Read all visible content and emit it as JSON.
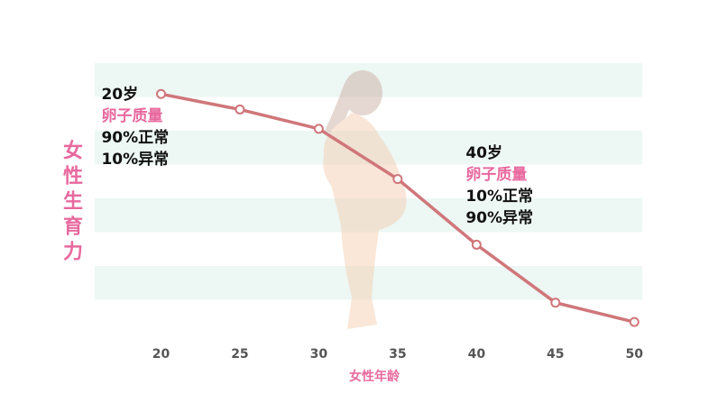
{
  "chart_data": {
    "type": "line",
    "x": [
      20,
      25,
      30,
      35,
      40,
      45,
      50
    ],
    "series": [
      {
        "color": "#d0767a",
        "values": [
          6.2,
          5.8,
          5.3,
          4.0,
          2.3,
          0.8,
          0.3
        ]
      }
    ],
    "xlim": [
      15.8,
      50.5
    ],
    "xticks": [
      20,
      25,
      30,
      35,
      40,
      45,
      50
    ],
    "ylim": [
      0,
      7
    ],
    "xlabel": "女性年龄",
    "ylabel": "女性生育力",
    "band_color": "#edf7f4",
    "annotations": [
      {
        "x": 20,
        "lines": [
          "20岁",
          "卵子质量",
          "90%正常",
          "10%异常"
        ]
      },
      {
        "x": 40,
        "lines": [
          "40岁",
          "卵子质量",
          "10%正常",
          "90%异常"
        ]
      }
    ]
  }
}
